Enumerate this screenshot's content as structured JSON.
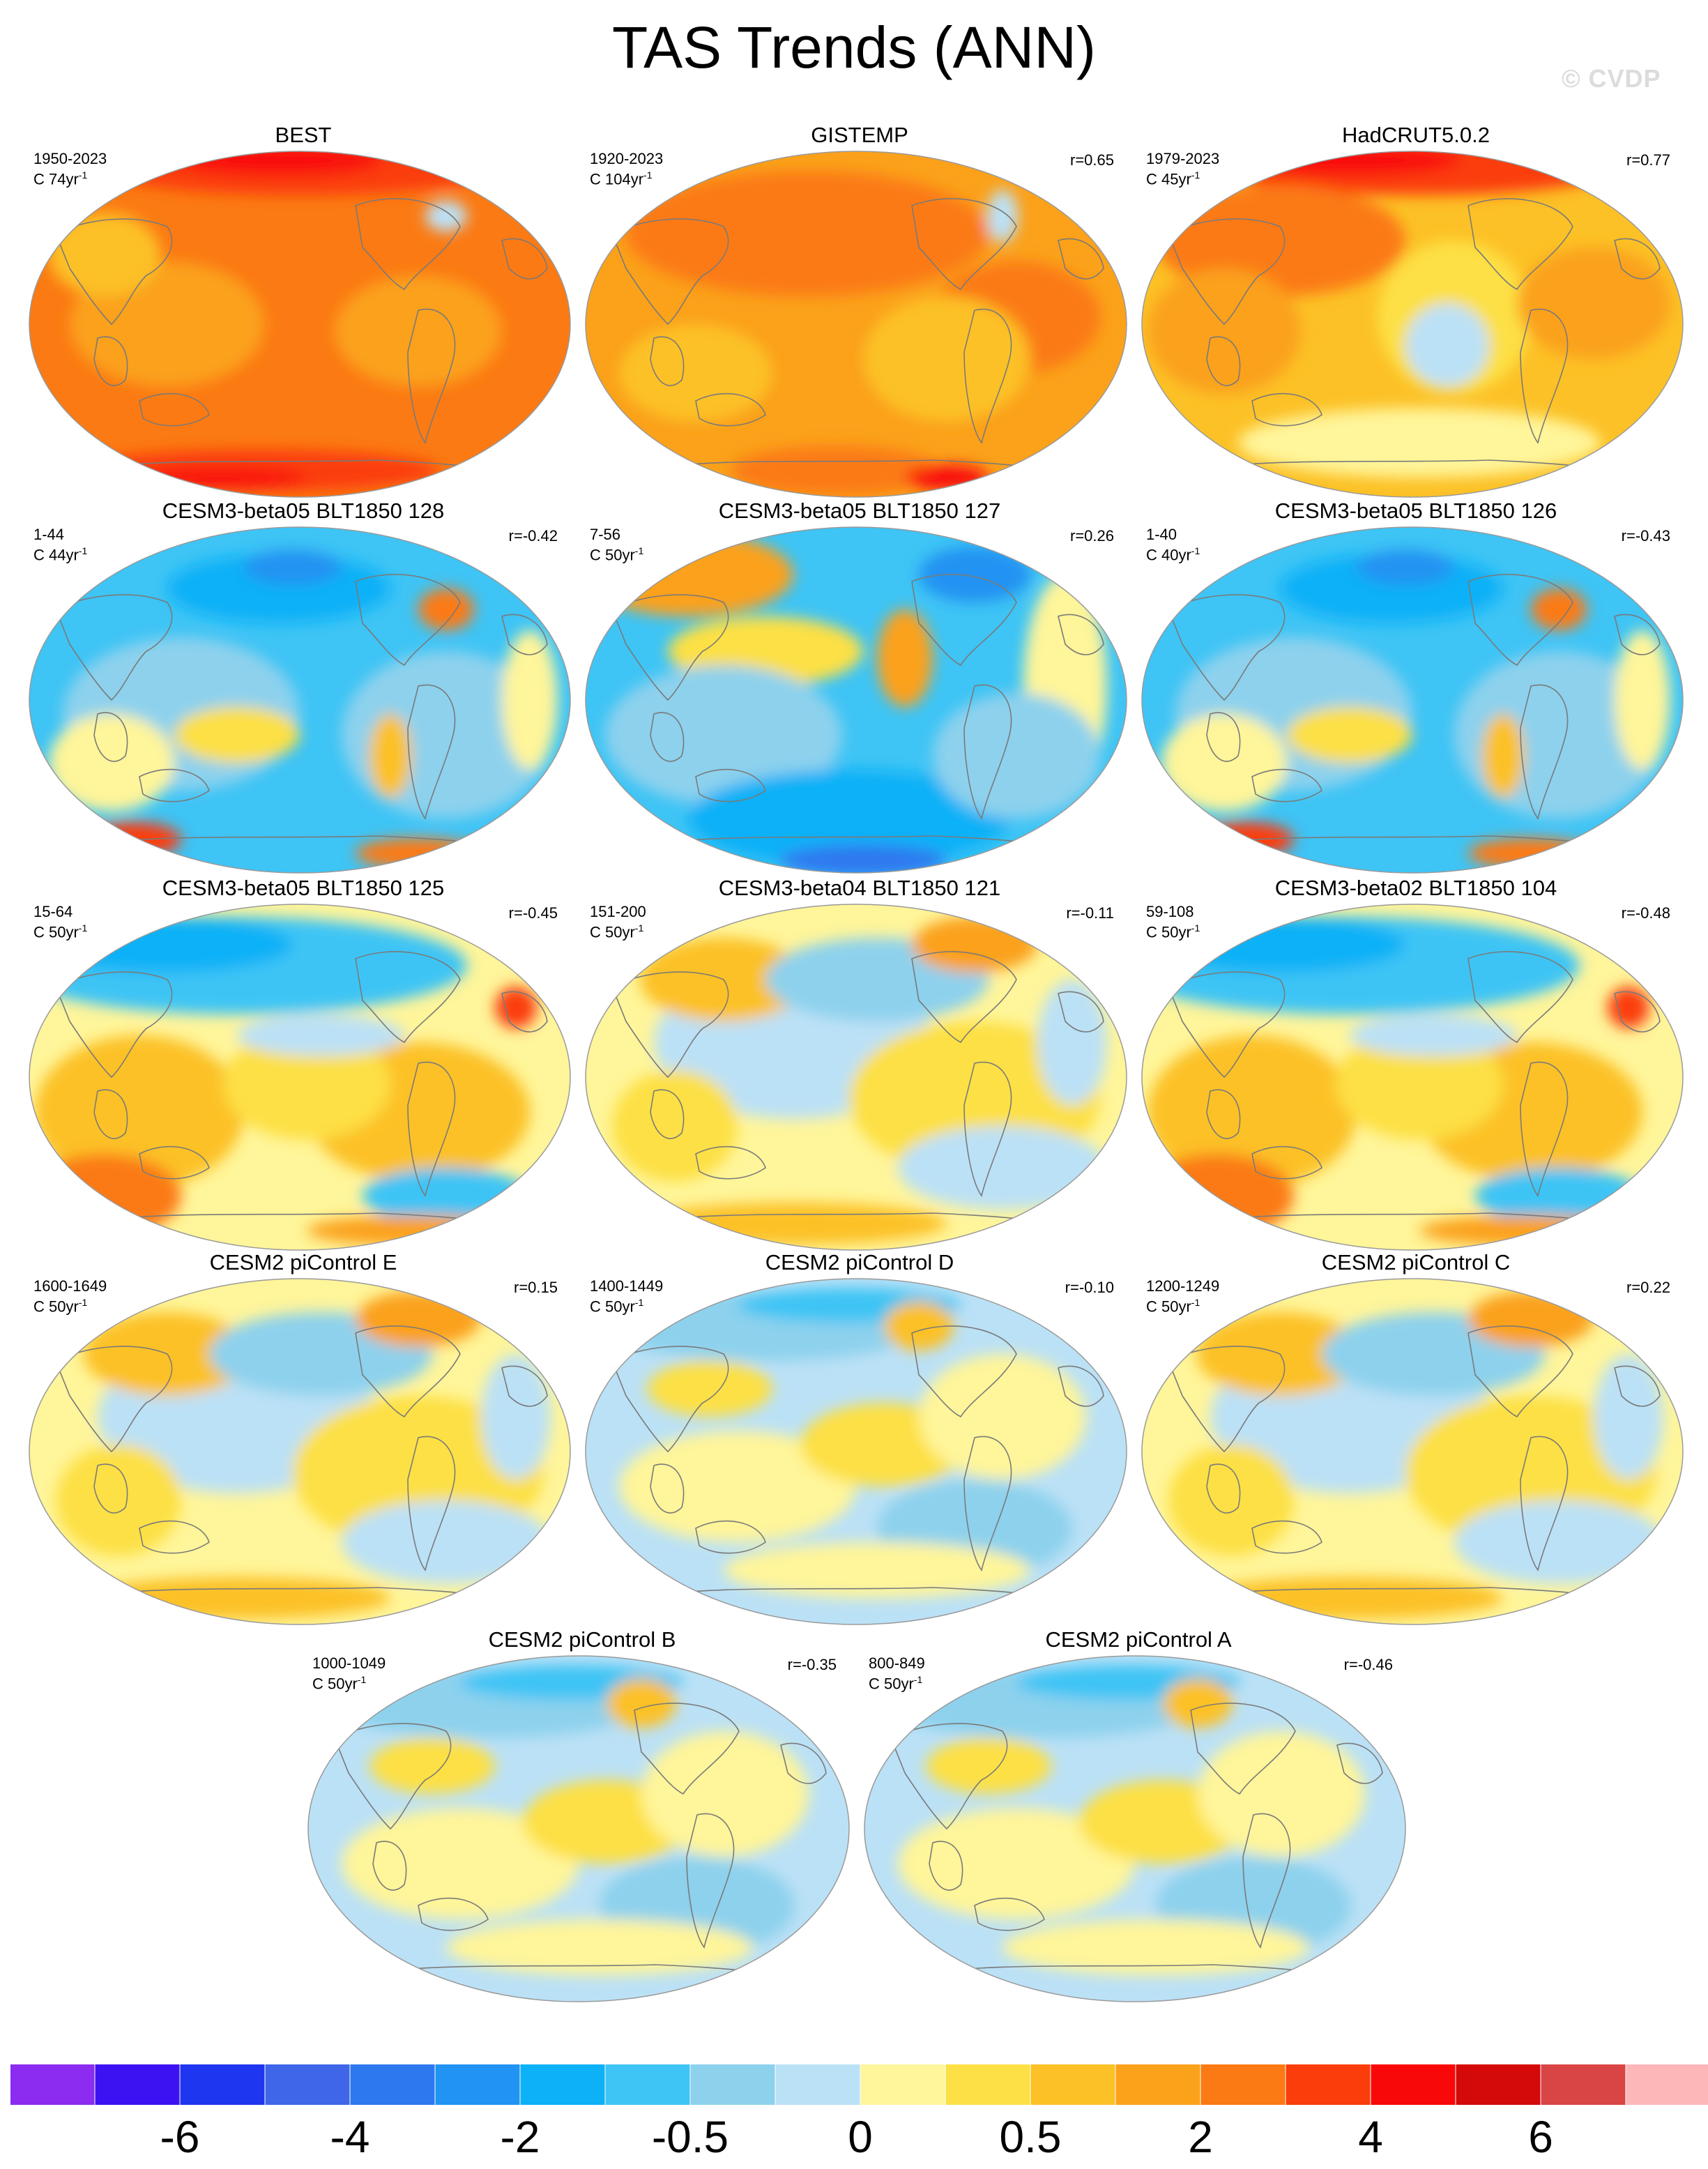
{
  "title": "TAS Trends (ANN)",
  "watermark": "© CVDP",
  "colorbar": {
    "colors": [
      "#8b2cf0",
      "#3d12f2",
      "#1f36f0",
      "#3f66e8",
      "#2e78ef",
      "#2193f2",
      "#0db1f7",
      "#3ec4f5",
      "#8dd1ed",
      "#bbe1f6",
      "#fff59a",
      "#fde045",
      "#fcc126",
      "#fba11a",
      "#fb7a13",
      "#fb3d0c",
      "#f9080a",
      "#d40909",
      "#d94545",
      "#fdb7b9"
    ],
    "tick_labels": [
      "-6",
      "-4",
      "-2",
      "-0.5",
      "0",
      "0.5",
      "2",
      "4",
      "6"
    ]
  },
  "panels": [
    {
      "title": "BEST",
      "period": "1950-2023",
      "unit_prefix": "C 74yr",
      "corr": "",
      "style": "warm1"
    },
    {
      "title": "GISTEMP",
      "period": "1920-2023",
      "unit_prefix": "C 104yr",
      "corr": "r=0.65",
      "style": "warm2"
    },
    {
      "title": "HadCRUT5.0.2",
      "period": "1979-2023",
      "unit_prefix": "C 45yr",
      "corr": "r=0.77",
      "style": "warm3"
    },
    {
      "title": "CESM3-beta05 BLT1850 128",
      "period": "1-44",
      "unit_prefix": "C 44yr",
      "corr": "r=-0.42",
      "style": "cool1"
    },
    {
      "title": "CESM3-beta05 BLT1850 127",
      "period": "7-56",
      "unit_prefix": "C 50yr",
      "corr": "r=0.26",
      "style": "cool2"
    },
    {
      "title": "CESM3-beta05 BLT1850 126",
      "period": "1-40",
      "unit_prefix": "C 40yr",
      "corr": "r=-0.43",
      "style": "cool1"
    },
    {
      "title": "CESM3-beta05 BLT1850 125",
      "period": "15-64",
      "unit_prefix": "C 50yr",
      "corr": "r=-0.45",
      "style": "mixwarm"
    },
    {
      "title": "CESM3-beta04 BLT1850 121",
      "period": "151-200",
      "unit_prefix": "C 50yr",
      "corr": "r=-0.11",
      "style": "mixyellow"
    },
    {
      "title": "CESM3-beta02 BLT1850 104",
      "period": "59-108",
      "unit_prefix": "C 50yr",
      "corr": "r=-0.48",
      "style": "mixwarm"
    },
    {
      "title": "CESM2 piControl E",
      "period": "1600-1649",
      "unit_prefix": "C 50yr",
      "corr": "r=0.15",
      "style": "mixyellow"
    },
    {
      "title": "CESM2 piControl D",
      "period": "1400-1449",
      "unit_prefix": "C 50yr",
      "corr": "r=-0.10",
      "style": "mixlight"
    },
    {
      "title": "CESM2 piControl C",
      "period": "1200-1249",
      "unit_prefix": "C 50yr",
      "corr": "r=0.22",
      "style": "mixyellow"
    },
    {
      "title": "CESM2 piControl B",
      "period": "1000-1049",
      "unit_prefix": "C 50yr",
      "corr": "r=-0.35",
      "style": "mixlight"
    },
    {
      "title": "CESM2 piControl A",
      "period": "800-849",
      "unit_prefix": "C 50yr",
      "corr": "r=-0.46",
      "style": "mixlight"
    }
  ],
  "unit_superscript": "-1"
}
